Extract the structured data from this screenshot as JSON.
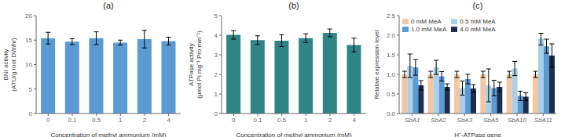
{
  "chart_data": [
    {
      "type": "bar",
      "title": "(a)",
      "categories": [
        "0",
        "0.1",
        "0.5",
        "1",
        "2",
        "4"
      ],
      "values": [
        15.4,
        14.7,
        15.4,
        14.5,
        15.2,
        14.8
      ],
      "errors": [
        1.2,
        0.6,
        1.3,
        0.5,
        1.8,
        0.8
      ],
      "color": "#5B9BD5",
      "y_label": "BNI activity\n(ATU/g root DW/hr)",
      "x_label": "Concentration of methyl ammonium (mM)",
      "ylim": [
        0,
        20
      ],
      "yticks": [
        0,
        5,
        10,
        15,
        20
      ],
      "grid": false
    },
    {
      "type": "bar",
      "title": "(b)",
      "categories": [
        "0",
        "0.1",
        "0.5",
        "1",
        "2",
        "4"
      ],
      "values": [
        4.02,
        3.75,
        3.72,
        3.85,
        4.12,
        3.5
      ],
      "errors": [
        0.22,
        0.22,
        0.3,
        0.22,
        0.2,
        0.35
      ],
      "color": "#2E8585",
      "y_label": "ATPase activity\n(μmol Pi mg⁻¹ Pro min⁻¹)",
      "x_label": "Concentration of methyl ammonium (mM)",
      "ylim": [
        0,
        5
      ],
      "yticks": [
        0,
        1,
        2,
        3,
        4,
        5
      ],
      "grid": false
    },
    {
      "type": "bar",
      "title": "(c)",
      "categories": [
        "SbA1",
        "SbA2",
        "SbA3",
        "SbA5",
        "SbA10",
        "SbA11"
      ],
      "series": [
        {
          "name": "0 mM MeA",
          "color": "#F5C6A0",
          "values": [
            1.0,
            1.0,
            1.0,
            1.0,
            1.0,
            1.0
          ],
          "errors": [
            0.08,
            0.08,
            0.08,
            0.08,
            0.08,
            0.08
          ]
        },
        {
          "name": "0.5 mM MeA",
          "color": "#A8D0E8",
          "values": [
            1.22,
            1.18,
            0.65,
            0.72,
            1.15,
            1.9
          ],
          "errors": [
            0.3,
            0.18,
            0.18,
            0.42,
            0.18,
            0.15
          ]
        },
        {
          "name": "1.0 mM MeA",
          "color": "#5B9BD5",
          "values": [
            1.18,
            0.95,
            0.88,
            0.65,
            0.45,
            1.72
          ],
          "errors": [
            0.2,
            0.12,
            0.12,
            0.2,
            0.12,
            0.18
          ]
        },
        {
          "name": "4.0 mM MeA",
          "color": "#1C2E50",
          "values": [
            0.72,
            0.68,
            0.64,
            0.68,
            0.43,
            1.48
          ],
          "errors": [
            0.12,
            0.08,
            0.1,
            0.12,
            0.1,
            0.3
          ]
        }
      ],
      "y_label": "Relative expression level",
      "x_label": "H⁺-ATPase gene",
      "ylim": [
        0,
        2.5
      ],
      "yticks": [
        {
          "value": 0,
          "label": "0.0"
        },
        0.5,
        {
          "value": 1,
          "label": "1.0"
        },
        1.5,
        {
          "value": 2,
          "label": "2.0"
        },
        2.5
      ],
      "legend": "upper left",
      "grid": false
    }
  ]
}
